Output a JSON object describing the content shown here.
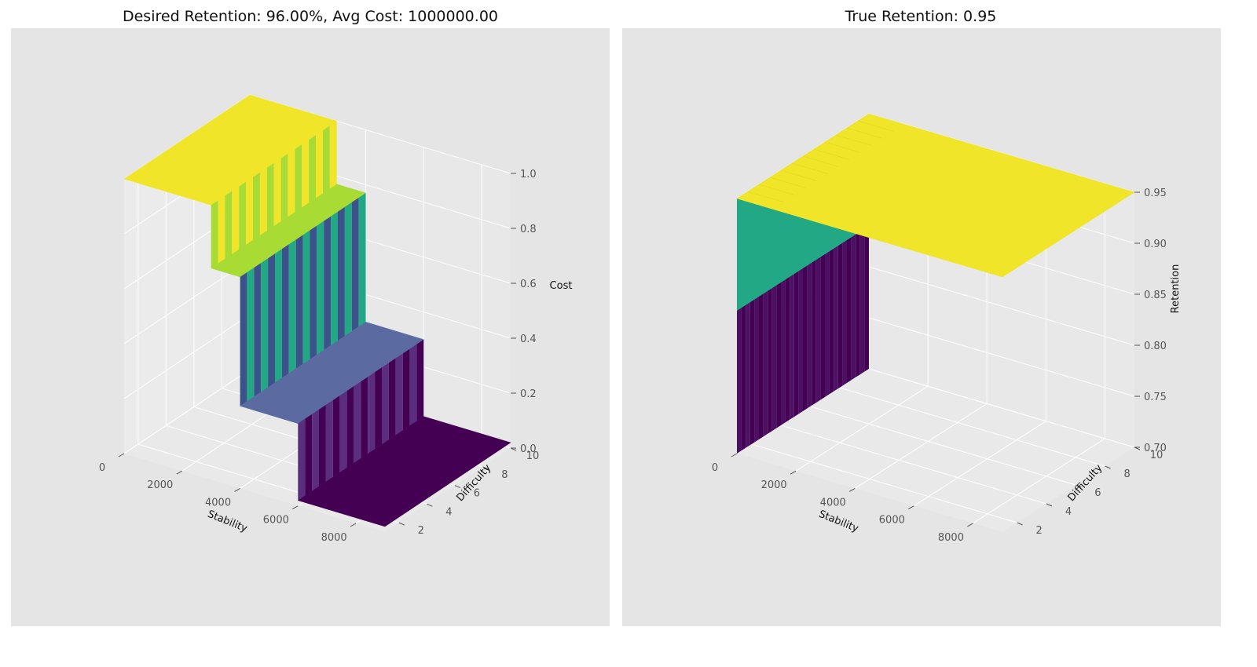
{
  "chart_data": [
    {
      "type": "surface3d",
      "title": "Desired Retention: 96.00%, Avg Cost: 1000000.00",
      "xlabel": "Stability",
      "ylabel": "Difficulty",
      "zlabel": "Cost",
      "xticks": [
        "0",
        "2000",
        "4000",
        "6000",
        "8000"
      ],
      "yticks": [
        "2",
        "4",
        "6",
        "8",
        "10"
      ],
      "zticks": [
        "0.0",
        "0.2",
        "0.4",
        "0.6",
        "0.8",
        "1.0"
      ],
      "xlim": [
        0,
        9000
      ],
      "ylim": [
        1,
        10
      ],
      "zlim": [
        0,
        1
      ],
      "description_levels": [
        {
          "stability_range": [
            0,
            3000
          ],
          "cost": 1.0
        },
        {
          "stability_range": [
            3000,
            4000
          ],
          "cost": 0.77
        },
        {
          "stability_range": [
            4000,
            6000
          ],
          "cost": 0.3
        },
        {
          "stability_range": [
            6000,
            9000
          ],
          "cost": 0.02
        }
      ],
      "colormap": "viridis",
      "grid": true
    },
    {
      "type": "surface3d",
      "title": "True Retention: 0.95",
      "xlabel": "Stability",
      "ylabel": "Difficulty",
      "zlabel": "Retention",
      "xticks": [
        "0",
        "2000",
        "4000",
        "6000",
        "8000"
      ],
      "yticks": [
        "2",
        "4",
        "6",
        "8",
        "10"
      ],
      "zticks": [
        "0.70",
        "0.75",
        "0.80",
        "0.85",
        "0.90",
        "0.95"
      ],
      "xlim": [
        0,
        9000
      ],
      "ylim": [
        1,
        10
      ],
      "zlim": [
        0.7,
        0.95
      ],
      "colormap": "viridis",
      "grid": true
    }
  ],
  "colors": {
    "pane": "#e5e5e5",
    "yellow": "#f0e528",
    "lime": "#a8db34",
    "teal": "#22a884",
    "slate": "#3b528b",
    "purple": "#440154"
  }
}
